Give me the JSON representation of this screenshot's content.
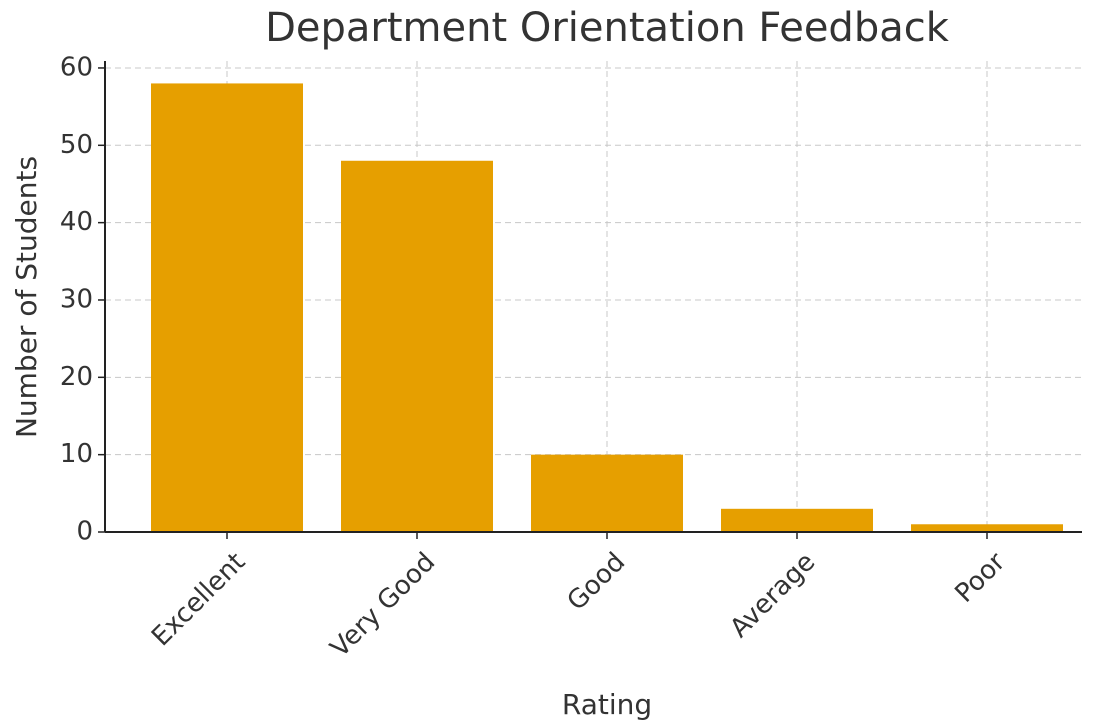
{
  "chart_data": {
    "type": "bar",
    "title": "Department Orientation Feedback",
    "x_label": "Rating",
    "y_label": "Number of Students",
    "categories": [
      "Excellent",
      "Very Good",
      "Good",
      "Average",
      "Poor"
    ],
    "values": [
      58,
      48,
      10,
      3,
      1
    ],
    "color": "#e69f00",
    "ylim": [
      0,
      60.9
    ],
    "yticks": [
      0,
      10,
      20,
      30,
      40,
      50,
      60
    ],
    "grid": true
  }
}
